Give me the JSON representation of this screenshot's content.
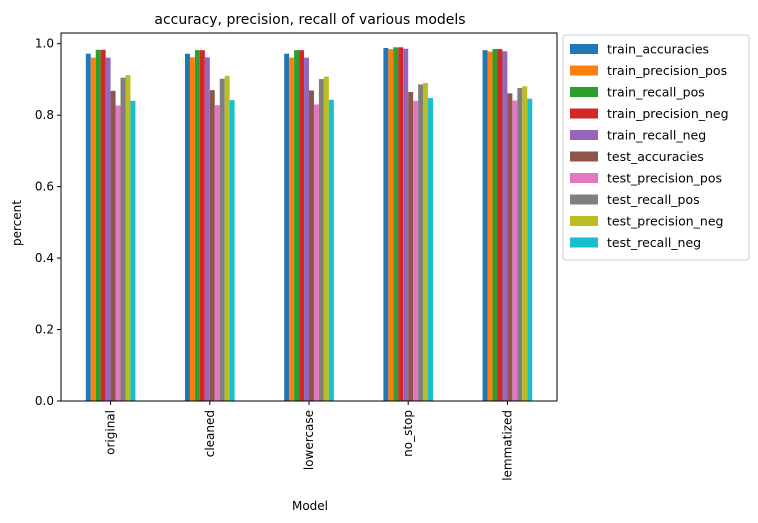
{
  "chart_data": {
    "type": "bar",
    "title": "accuracy, precision, recall of various models",
    "xlabel": "Model",
    "ylabel": "percent",
    "ylim": [
      0,
      1.0
    ],
    "yticks": [
      "0.0",
      "0.2",
      "0.4",
      "0.6",
      "0.8",
      "1.0"
    ],
    "legend_position": "outside-right",
    "grid": false,
    "categories": [
      "original",
      "cleaned",
      "lowercase",
      "no_stop",
      "lemmatized"
    ],
    "series": [
      {
        "name": "train_accuracies",
        "color": "#1f77b4",
        "values": [
          0.972,
          0.972,
          0.972,
          0.988,
          0.982
        ]
      },
      {
        "name": "train_precision_pos",
        "color": "#ff7f0e",
        "values": [
          0.961,
          0.962,
          0.961,
          0.985,
          0.978
        ]
      },
      {
        "name": "train_recall_pos",
        "color": "#2ca02c",
        "values": [
          0.983,
          0.982,
          0.982,
          0.99,
          0.985
        ]
      },
      {
        "name": "train_precision_neg",
        "color": "#d62728",
        "values": [
          0.983,
          0.982,
          0.982,
          0.99,
          0.985
        ]
      },
      {
        "name": "train_recall_neg",
        "color": "#9467bd",
        "values": [
          0.961,
          0.962,
          0.961,
          0.986,
          0.979
        ]
      },
      {
        "name": "test_accuracies",
        "color": "#8c564b",
        "values": [
          0.868,
          0.87,
          0.869,
          0.865,
          0.861
        ]
      },
      {
        "name": "test_precision_pos",
        "color": "#e377c2",
        "values": [
          0.827,
          0.828,
          0.83,
          0.84,
          0.841
        ]
      },
      {
        "name": "test_recall_pos",
        "color": "#7f7f7f",
        "values": [
          0.905,
          0.902,
          0.901,
          0.886,
          0.876
        ]
      },
      {
        "name": "test_precision_neg",
        "color": "#bcbd22",
        "values": [
          0.912,
          0.91,
          0.908,
          0.89,
          0.881
        ]
      },
      {
        "name": "test_recall_neg",
        "color": "#17becf",
        "values": [
          0.84,
          0.842,
          0.843,
          0.848,
          0.846
        ]
      }
    ]
  }
}
